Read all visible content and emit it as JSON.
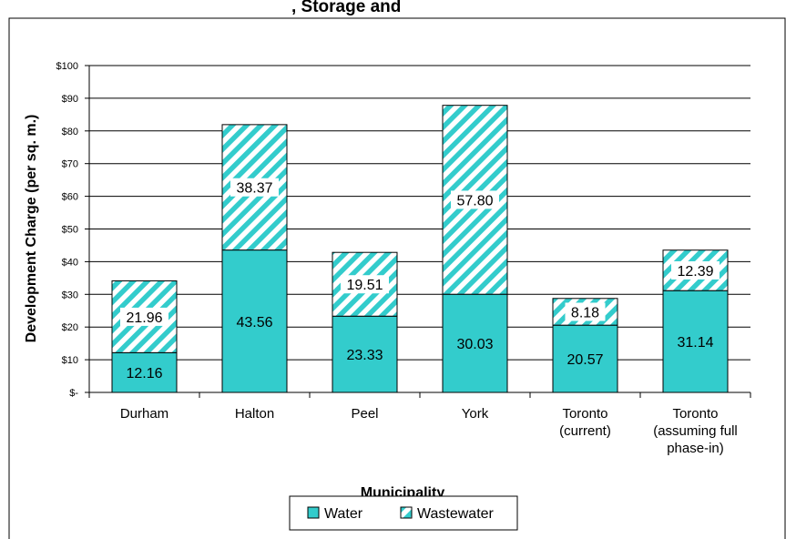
{
  "chart_data": {
    "type": "bar",
    "stacked": true,
    "title_fragment": ", Storage and ",
    "categories": [
      [
        "Durham"
      ],
      [
        "Halton"
      ],
      [
        "Peel"
      ],
      [
        "York"
      ],
      [
        "Toronto",
        "(current)"
      ],
      [
        "Toronto",
        "(assuming full",
        "phase-in)"
      ]
    ],
    "series": [
      {
        "name": "Water",
        "values": [
          12.16,
          43.56,
          23.33,
          30.03,
          20.57,
          31.14
        ],
        "color": "#33CCCC",
        "pattern": "solid"
      },
      {
        "name": "Wastewater",
        "values": [
          21.96,
          38.37,
          19.51,
          57.8,
          8.18,
          12.39
        ],
        "color": "#33CCCC",
        "pattern": "diagonal-stripes"
      }
    ],
    "data_labels": [
      [
        "12.16",
        "43.56",
        "23.33",
        "30.03",
        "20.57",
        "31.14"
      ],
      [
        "21.96",
        "38.37",
        "19.51",
        "57.80",
        "8.18",
        "12.39"
      ]
    ],
    "ylim": [
      0,
      100
    ],
    "yticks": [
      {
        "value": 0,
        "label": "$-"
      },
      {
        "value": 10,
        "label": "$10"
      },
      {
        "value": 20,
        "label": "$20"
      },
      {
        "value": 30,
        "label": "$30"
      },
      {
        "value": 40,
        "label": "$40"
      },
      {
        "value": 50,
        "label": "$50"
      },
      {
        "value": 60,
        "label": "$60"
      },
      {
        "value": 70,
        "label": "$70"
      },
      {
        "value": 80,
        "label": "$80"
      },
      {
        "value": 90,
        "label": "$90"
      },
      {
        "value": 100,
        "label": "$100"
      }
    ],
    "ylabel": "Development Charge (per sq. m.)",
    "xlabel": "Municipality",
    "grid": true,
    "legend_position": "bottom"
  }
}
